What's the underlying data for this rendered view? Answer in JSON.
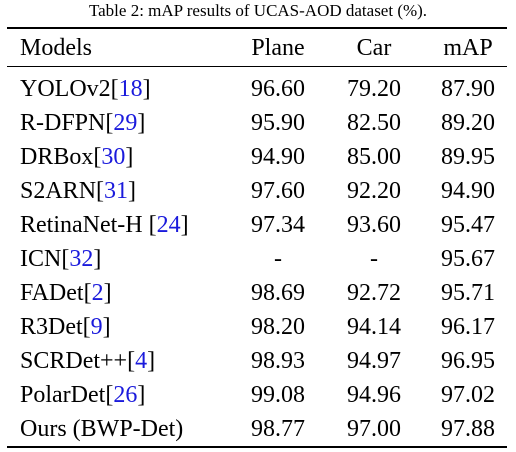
{
  "caption": "Table 2: mAP results of UCAS-AOD dataset (%).",
  "columns": [
    "Models",
    "Plane",
    "Car",
    "mAP"
  ],
  "rows": [
    {
      "name": "YOLOv2",
      "ref": "18",
      "sep": "",
      "plane": "96.60",
      "car": "79.20",
      "map": "87.90"
    },
    {
      "name": "R-DFPN",
      "ref": "29",
      "sep": "",
      "plane": "95.90",
      "car": "82.50",
      "map": "89.20"
    },
    {
      "name": "DRBox",
      "ref": "30",
      "sep": "",
      "plane": "94.90",
      "car": "85.00",
      "map": "89.95"
    },
    {
      "name": "S2ARN",
      "ref": "31",
      "sep": "",
      "plane": "97.60",
      "car": "92.20",
      "map": "94.90"
    },
    {
      "name": "RetinaNet-H",
      "ref": "24",
      "sep": " ",
      "plane": "97.34",
      "car": "93.60",
      "map": "95.47"
    },
    {
      "name": "ICN",
      "ref": "32",
      "sep": "",
      "plane": "-",
      "car": "-",
      "map": "95.67"
    },
    {
      "name": "FADet",
      "ref": "2",
      "sep": "",
      "plane": "98.69",
      "car": "92.72",
      "map": "95.71"
    },
    {
      "name": "R3Det",
      "ref": "9",
      "sep": "",
      "plane": "98.20",
      "car": "94.14",
      "map": "96.17"
    },
    {
      "name": "SCRDet++",
      "ref": "4",
      "sep": "",
      "plane": "98.93",
      "car": "94.97",
      "map": "96.95"
    },
    {
      "name": "PolarDet",
      "ref": "26",
      "sep": "",
      "plane": "99.08",
      "car": "94.96",
      "map": "97.02"
    },
    {
      "name": "Ours (BWP-Det)",
      "ref": "",
      "sep": "",
      "plane": "98.77",
      "car": "97.00",
      "map": "97.88"
    }
  ]
}
